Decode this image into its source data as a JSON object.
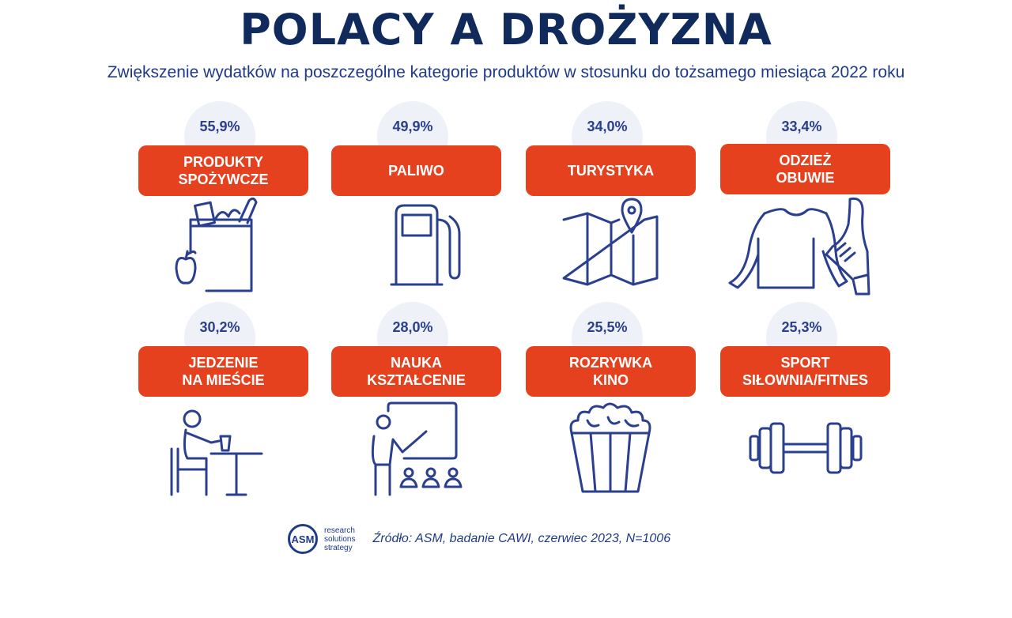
{
  "title": "POLACY A DROŻYZNA",
  "subtitle": "Zwiększenie wydatków na poszczególne kategorie produktów w stosunku do tożsamego miesiąca 2022 roku",
  "chart_data": {
    "type": "table",
    "title": "POLACY A DROŻYZNA",
    "subtitle": "Zwiększenie wydatków na poszczególne kategorie produktów w stosunku do tożsamego miesiąca 2022 roku",
    "categories": [
      "PRODUKTY\nSPOŻYWCZE",
      "PALIWO",
      "TURYSTYKA",
      "ODZIEŻ\nOBUWIE",
      "JEDZENIE\nNA MIEŚCIE",
      "NAUKA\nKSZTAŁCENIE",
      "ROZRYWKA\nKINO",
      "SPORT\nSIŁOWNIA/FITNES"
    ],
    "values": [
      55.9,
      49.9,
      34.0,
      33.4,
      30.2,
      28.0,
      25.5,
      25.3
    ],
    "labels": [
      "55,9%",
      "49,9%",
      "34,0%",
      "33,4%",
      "30,2%",
      "28,0%",
      "25,5%",
      "25,3%"
    ],
    "icons": [
      "grocery-bag-icon",
      "fuel-pump-icon",
      "map-icon",
      "clothing-shoe-icon",
      "dining-icon",
      "teaching-icon",
      "popcorn-icon",
      "dumbbell-icon"
    ]
  },
  "colors": {
    "label_bg": "#e5411f",
    "accent": "#2a3f8f",
    "bubble": "#eef1f8"
  },
  "footer": {
    "logo": "ASM",
    "tagline": [
      "research",
      "solutions",
      "strategy"
    ],
    "source": "Źródło: ASM, badanie CAWI, czerwiec 2023, N=1006"
  }
}
